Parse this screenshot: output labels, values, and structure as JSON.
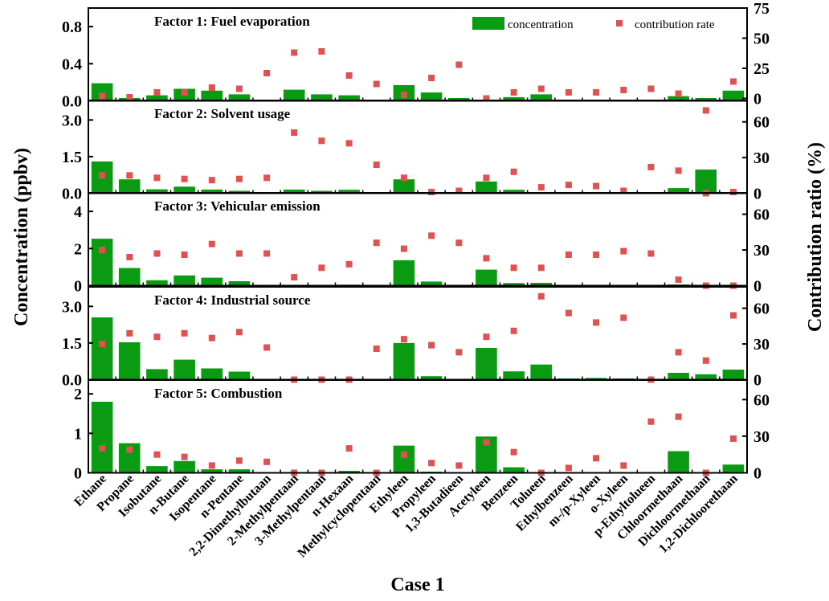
{
  "chart_data": {
    "type": "bar+scatter",
    "x_label": "Case 1",
    "y_left_label": "Concentration (ppbv)",
    "y_right_label": "Contribution ratio (%)",
    "legend": {
      "position": "top-right",
      "items": [
        {
          "label": "concentration",
          "marker": "bar",
          "color": "#0b9b12"
        },
        {
          "label": "contribution rate",
          "marker": "square",
          "color": "#e05252"
        }
      ]
    },
    "colors": {
      "bar": "#0b9b12",
      "point": "#e05252"
    },
    "categories": [
      "Ethane",
      "Propane",
      "Isobutane",
      "n-Butane",
      "Isopentane",
      "n-Pentane",
      "2,2-Dimethylbutaan",
      "2-Methylpentaan",
      "3-Methylpentaan",
      "n-Hexaan",
      "Methylcyclopentaan",
      "Ethyleen",
      "Propyleen",
      "1,3-Butadieen",
      "Acetyleen",
      "Benzeen",
      "Tolueen",
      "Ethylbenzeen",
      "m-/p-Xyleen",
      "o-Xyleen",
      "p-Ethyltolueen",
      "Chloormethaan",
      "Dichloormethaan",
      "1,2-Dichloorethaan"
    ],
    "panels": [
      {
        "title": "Factor 1: Fuel evaporation",
        "left_ticks": [
          "0.0",
          "0.4",
          "0.8"
        ],
        "left_max": 1.0,
        "right_ticks": [
          "0",
          "25",
          "50",
          "75"
        ],
        "right_max": 75,
        "right_min": -2,
        "concentration": [
          0.19,
          0.03,
          0.06,
          0.13,
          0.11,
          0.07,
          0.01,
          0.12,
          0.07,
          0.06,
          0.0,
          0.17,
          0.09,
          0.03,
          0.0,
          0.04,
          0.07,
          0.0,
          0.01,
          0.0,
          0.0,
          0.05,
          0.03,
          0.11
        ],
        "contribution": [
          2,
          1,
          5,
          5,
          9,
          8,
          21,
          38,
          39,
          19,
          12,
          3,
          17,
          28,
          0,
          5,
          8,
          5,
          5,
          7,
          8,
          4,
          -10,
          14
        ]
      },
      {
        "title": "Factor 2: Solvent usage",
        "left_ticks": [
          "0.0",
          "1.5",
          "3.0"
        ],
        "left_max": 3.8,
        "right_ticks": [
          "0",
          "30",
          "60"
        ],
        "right_max": 78,
        "right_min": 0,
        "concentration": [
          1.3,
          0.57,
          0.16,
          0.27,
          0.15,
          0.1,
          0.03,
          0.15,
          0.1,
          0.14,
          0.0,
          0.57,
          0.0,
          0.0,
          0.48,
          0.14,
          0.05,
          0.0,
          0.0,
          0.0,
          0.0,
          0.21,
          0.97,
          0.0
        ],
        "contribution": [
          15,
          15,
          13,
          12,
          11,
          12,
          13,
          51,
          44,
          42,
          24,
          13,
          1,
          2,
          13,
          18,
          5,
          7,
          6,
          2,
          22,
          19,
          0,
          1
        ]
      },
      {
        "title": "Factor 3: Vehicular emission",
        "left_ticks": [
          "0",
          "2",
          "4"
        ],
        "left_max": 5.0,
        "right_ticks": [
          "0",
          "30",
          "60"
        ],
        "right_max": 78,
        "right_min": 0,
        "concentration": [
          2.53,
          0.95,
          0.29,
          0.55,
          0.43,
          0.24,
          0.0,
          0.0,
          0.0,
          0.05,
          0.0,
          1.37,
          0.22,
          0.0,
          0.86,
          0.14,
          0.15,
          0.0,
          0.04,
          0.0,
          0.0,
          0.06,
          0.0,
          0.0
        ],
        "contribution": [
          30,
          24,
          27,
          26,
          35,
          27,
          27,
          7,
          15,
          18,
          36,
          31,
          42,
          36,
          23,
          15,
          15,
          26,
          26,
          29,
          27,
          5,
          0,
          0
        ]
      },
      {
        "title": "Factor 4: Industrial source",
        "left_ticks": [
          "0.0",
          "1.5",
          "3.0"
        ],
        "left_max": 3.8,
        "right_ticks": [
          "0",
          "30",
          "60"
        ],
        "right_max": 78,
        "right_min": 0,
        "concentration": [
          2.55,
          1.53,
          0.43,
          0.82,
          0.46,
          0.33,
          0.0,
          0.0,
          0.0,
          0.0,
          0.0,
          1.5,
          0.14,
          0.0,
          1.3,
          0.34,
          0.62,
          0.05,
          0.07,
          0.05,
          0.0,
          0.28,
          0.22,
          0.41
        ],
        "contribution": [
          30,
          39,
          36,
          39,
          35,
          40,
          27,
          0,
          0,
          0,
          26,
          34,
          29,
          23,
          36,
          41,
          70,
          56,
          48,
          52,
          0,
          23,
          16,
          54
        ]
      },
      {
        "title": "Factor 5: Combustion",
        "left_ticks": [
          "0",
          "1",
          "2"
        ],
        "left_max": 2.35,
        "right_ticks": [
          "0",
          "30",
          "60"
        ],
        "right_max": 76,
        "right_min": 0,
        "concentration": [
          1.8,
          0.75,
          0.17,
          0.3,
          0.09,
          0.09,
          0.0,
          0.0,
          0.0,
          0.05,
          0.0,
          0.69,
          0.03,
          0.0,
          0.92,
          0.14,
          0.0,
          0.0,
          0.0,
          0.0,
          0.0,
          0.55,
          0.0,
          0.21
        ],
        "contribution": [
          20,
          19,
          15,
          13,
          6,
          10,
          9,
          0,
          0,
          20,
          0,
          15,
          8,
          6,
          25,
          17,
          0,
          4,
          12,
          6,
          42,
          46,
          0,
          28
        ]
      }
    ]
  }
}
